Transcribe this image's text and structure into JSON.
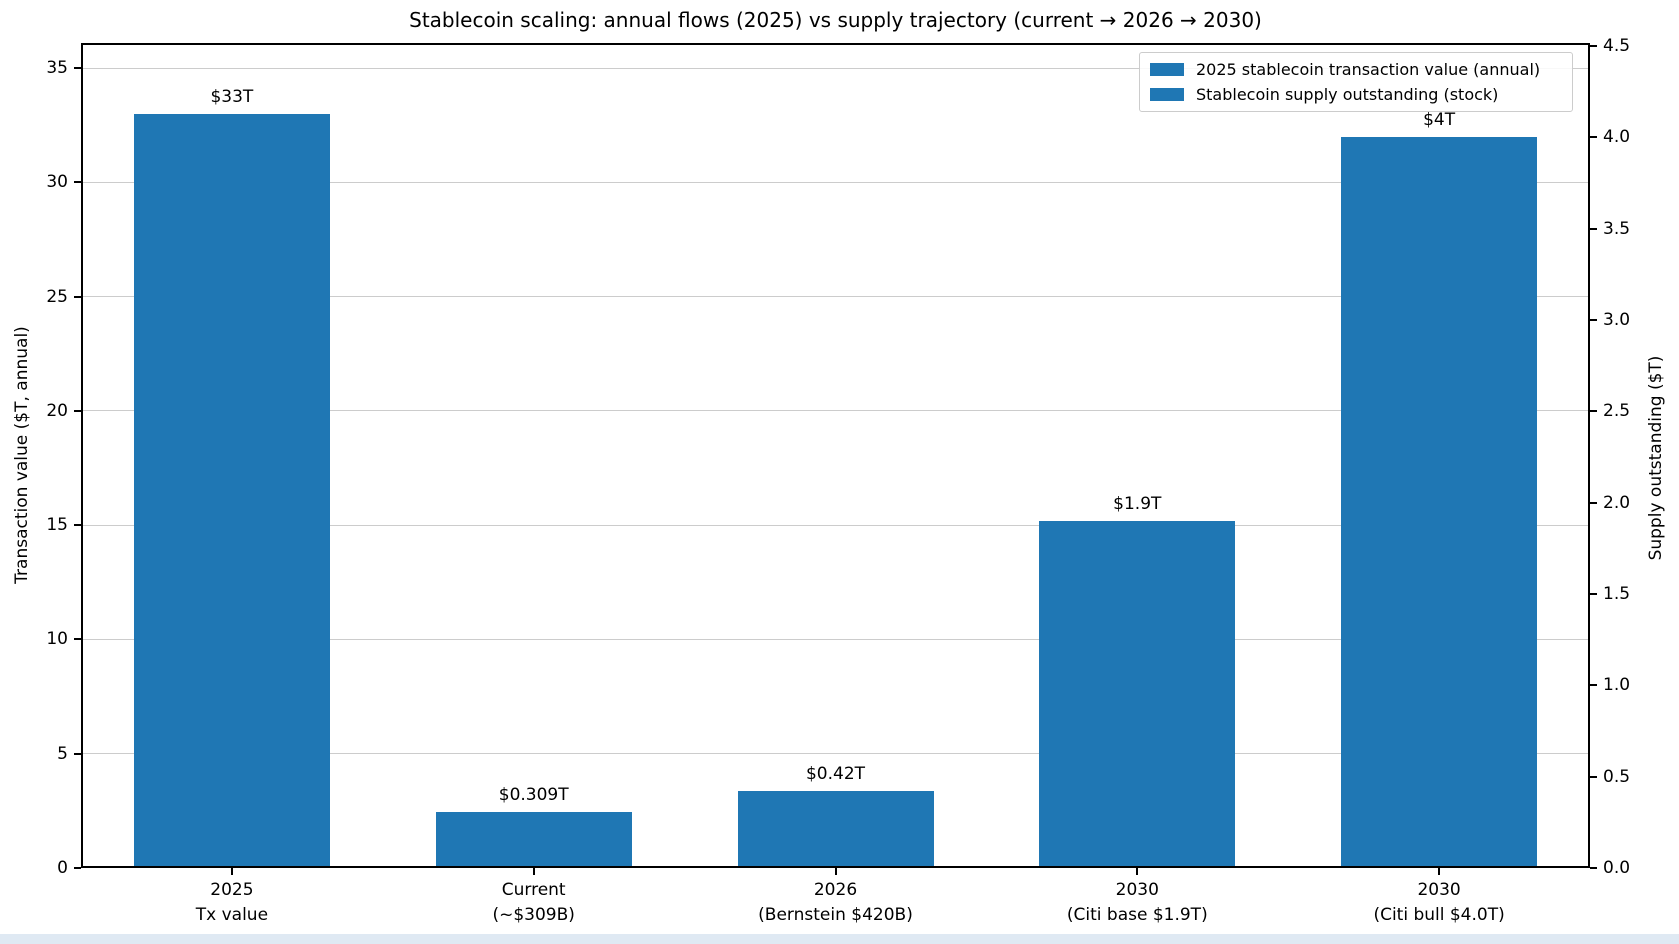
{
  "chart_data": {
    "type": "bar",
    "title": "Stablecoin scaling: annual flows (2025) vs supply trajectory (current → 2026 → 2030)",
    "dual_axis": true,
    "left_axis": {
      "label": "Transaction value ($T, annual)",
      "ticks": [
        0,
        5,
        10,
        15,
        20,
        25,
        30,
        35
      ],
      "range": [
        0,
        36.1
      ],
      "grid": true
    },
    "right_axis": {
      "label": "Supply outstanding ($T)",
      "ticks": [
        "0.0",
        "0.5",
        "1.0",
        "1.5",
        "2.0",
        "2.5",
        "3.0",
        "3.5",
        "4.0",
        "4.5"
      ],
      "range": [
        0,
        4.516
      ]
    },
    "categories": [
      [
        "2025",
        "Tx value"
      ],
      [
        "Current",
        "(~$309B)"
      ],
      [
        "2026",
        "(Bernstein $420B)"
      ],
      [
        "2030",
        "(Citi base $1.9T)"
      ],
      [
        "2030",
        "(Citi bull $4.0T)"
      ]
    ],
    "bars": [
      {
        "category": [
          "2025",
          "Tx value"
        ],
        "value": 33,
        "axis": "left",
        "value_label": "$33T",
        "series": "2025 stablecoin transaction value (annual)"
      },
      {
        "category": [
          "Current",
          "(~$309B)"
        ],
        "value": 0.309,
        "axis": "right",
        "value_label": "$0.309T",
        "series": "Stablecoin supply outstanding (stock)"
      },
      {
        "category": [
          "2026",
          "(Bernstein $420B)"
        ],
        "value": 0.42,
        "axis": "right",
        "value_label": "$0.42T",
        "series": "Stablecoin supply outstanding (stock)"
      },
      {
        "category": [
          "2030",
          "(Citi base $1.9T)"
        ],
        "value": 1.9,
        "axis": "right",
        "value_label": "$1.9T",
        "series": "Stablecoin supply outstanding (stock)"
      },
      {
        "category": [
          "2030",
          "(Citi bull $4.0T)"
        ],
        "value": 4.0,
        "axis": "right",
        "value_label": "$4T",
        "series": "Stablecoin supply outstanding (stock)"
      }
    ],
    "legend": [
      {
        "label": "2025 stablecoin transaction value (annual)",
        "color": "#1f77b4"
      },
      {
        "label": "Stablecoin supply outstanding (stock)",
        "color": "#1f77b4"
      }
    ],
    "legend_position": "upper right",
    "colors": {
      "bar": "#1f77b4",
      "grid": "#cccccc",
      "spine": "#000000",
      "bottom_strip": "#dfe9f3"
    }
  }
}
